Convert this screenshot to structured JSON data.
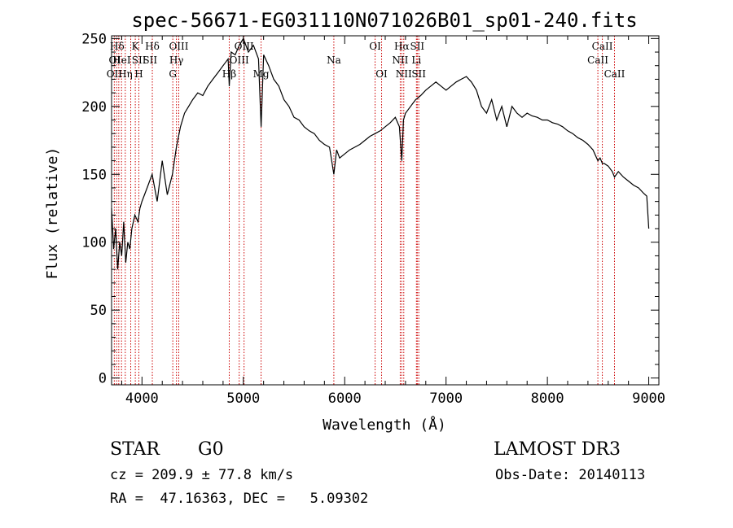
{
  "chart_data": {
    "type": "line",
    "title": "spec-56671-EG031110N071026B01_sp01-240.fits",
    "xlabel": "Wavelength (Å)",
    "ylabel": "Flux (relative)",
    "xlim": [
      3700,
      9100
    ],
    "ylim": [
      -5,
      252
    ],
    "xticks": [
      4000,
      5000,
      6000,
      7000,
      8000,
      9000
    ],
    "yticks": [
      0,
      50,
      100,
      150,
      200,
      250
    ],
    "series": [
      {
        "name": "flux",
        "x": [
          3700,
          3720,
          3740,
          3760,
          3780,
          3800,
          3820,
          3840,
          3860,
          3880,
          3900,
          3930,
          3960,
          3980,
          4000,
          4050,
          4100,
          4150,
          4200,
          4250,
          4300,
          4340,
          4380,
          4420,
          4460,
          4500,
          4550,
          4600,
          4650,
          4700,
          4750,
          4800,
          4850,
          4861,
          4880,
          4920,
          4960,
          5000,
          5050,
          5100,
          5150,
          5175,
          5200,
          5250,
          5300,
          5350,
          5400,
          5450,
          5500,
          5550,
          5600,
          5650,
          5700,
          5750,
          5800,
          5850,
          5893,
          5920,
          5950,
          6000,
          6050,
          6100,
          6150,
          6200,
          6250,
          6300,
          6350,
          6400,
          6450,
          6500,
          6540,
          6563,
          6580,
          6600,
          6650,
          6700,
          6750,
          6800,
          6850,
          6900,
          6950,
          7000,
          7050,
          7100,
          7150,
          7200,
          7250,
          7300,
          7350,
          7400,
          7450,
          7500,
          7550,
          7600,
          7650,
          7700,
          7750,
          7800,
          7850,
          7900,
          7950,
          8000,
          8050,
          8100,
          8150,
          8200,
          8250,
          8300,
          8350,
          8400,
          8450,
          8498,
          8520,
          8542,
          8560,
          8600,
          8640,
          8662,
          8700,
          8750,
          8800,
          8850,
          8900,
          8950,
          8980,
          9000
        ],
        "y": [
          125,
          95,
          110,
          80,
          100,
          90,
          115,
          85,
          100,
          95,
          110,
          120,
          115,
          125,
          130,
          140,
          150,
          130,
          160,
          135,
          150,
          170,
          185,
          195,
          200,
          205,
          210,
          208,
          215,
          220,
          225,
          230,
          235,
          215,
          240,
          238,
          245,
          250,
          240,
          245,
          235,
          185,
          238,
          230,
          220,
          215,
          205,
          200,
          192,
          190,
          185,
          182,
          180,
          175,
          172,
          170,
          150,
          168,
          162,
          165,
          168,
          170,
          172,
          175,
          178,
          180,
          182,
          185,
          188,
          192,
          185,
          160,
          190,
          195,
          200,
          205,
          208,
          212,
          215,
          218,
          215,
          212,
          215,
          218,
          220,
          222,
          218,
          212,
          200,
          195,
          205,
          190,
          200,
          185,
          200,
          195,
          192,
          195,
          193,
          192,
          190,
          190,
          188,
          187,
          185,
          182,
          180,
          177,
          175,
          172,
          168,
          160,
          162,
          158,
          158,
          156,
          152,
          148,
          152,
          148,
          145,
          142,
          140,
          136,
          134,
          110
        ]
      }
    ],
    "line_labels": [
      {
        "text": "Hδ",
        "wave": 3755,
        "row": 1
      },
      {
        "text": "OI",
        "wave": 3730,
        "row": 2
      },
      {
        "text": "OII",
        "wave": 3727,
        "row": 3
      },
      {
        "text": "HeI",
        "wave": 3800,
        "row": 2
      },
      {
        "text": "Hη",
        "wave": 3836,
        "row": 3
      },
      {
        "text": "K",
        "wave": 3934,
        "row": 1
      },
      {
        "text": "SII",
        "wave": 3970,
        "row": 2
      },
      {
        "text": "H",
        "wave": 3969,
        "row": 3
      },
      {
        "text": "Hδ",
        "wave": 4102,
        "row": 1
      },
      {
        "text": "SII",
        "wave": 4080,
        "row": 2
      },
      {
        "text": "OIII",
        "wave": 4363,
        "row": 1
      },
      {
        "text": "Hγ",
        "wave": 4340,
        "row": 2
      },
      {
        "text": "G",
        "wave": 4304,
        "row": 3
      },
      {
        "text": "OIII",
        "wave": 5007,
        "row": 1
      },
      {
        "text": "OIII",
        "wave": 4959,
        "row": 2
      },
      {
        "text": "Hβ",
        "wave": 4861,
        "row": 3
      },
      {
        "text": "Mg",
        "wave": 5175,
        "row": 3
      },
      {
        "text": "Na",
        "wave": 5893,
        "row": 2
      },
      {
        "text": "OI",
        "wave": 6300,
        "row": 1
      },
      {
        "text": "OI",
        "wave": 6364,
        "row": 3
      },
      {
        "text": "Hα",
        "wave": 6563,
        "row": 1
      },
      {
        "text": "NII",
        "wave": 6548,
        "row": 2
      },
      {
        "text": "NII",
        "wave": 6583,
        "row": 3
      },
      {
        "text": "SII",
        "wave": 6716,
        "row": 1
      },
      {
        "text": "Li",
        "wave": 6708,
        "row": 2
      },
      {
        "text": "SII",
        "wave": 6731,
        "row": 3
      },
      {
        "text": "CaII",
        "wave": 8542,
        "row": 1
      },
      {
        "text": "CaII",
        "wave": 8498,
        "row": 2
      },
      {
        "text": "CaII",
        "wave": 8662,
        "row": 3
      }
    ],
    "reference_lines": [
      3727,
      3750,
      3771,
      3798,
      3835,
      3889,
      3934,
      3969,
      4102,
      4304,
      4340,
      4363,
      4861,
      4959,
      5007,
      5175,
      5893,
      6300,
      6364,
      6548,
      6563,
      6583,
      6708,
      6716,
      6731,
      8498,
      8542,
      8662
    ],
    "colors": {
      "spectrum": "#000000",
      "reference_line": "#cc0000"
    }
  },
  "info": {
    "object_class": "STAR",
    "subclass": "G0",
    "survey": "LAMOST DR3",
    "redshift": "cz = 209.9 ± 77.8 km/s",
    "obs_date": "Obs-Date: 20140113",
    "coords": "RA =  47.16363, DEC =   5.09302"
  }
}
